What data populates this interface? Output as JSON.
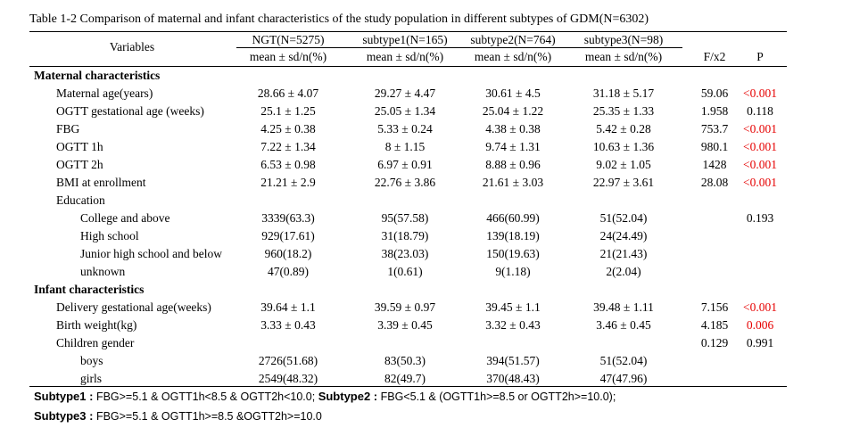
{
  "caption": "Table 1-2 Comparison of maternal and infant characteristics of the study population in different subtypes of GDM(N=6302)",
  "header": {
    "variables": "Variables",
    "groups": [
      "NGT(N=5275)",
      "subtype1(N=165)",
      "subtype2(N=764)",
      "subtype3(N=98)"
    ],
    "stat_label": "mean ± sd/n(%)",
    "f_label": "F/x2",
    "p_label": "P"
  },
  "rows": [
    {
      "type": "section",
      "label": "Maternal characteristics"
    },
    {
      "type": "data",
      "label": "Maternal age(years)",
      "indent": 1,
      "values": [
        "28.66 ± 4.07",
        "29.27 ± 4.47",
        "30.61 ± 4.5",
        "31.18 ± 5.17"
      ],
      "f": "59.06",
      "p": "<0.001",
      "p_red": true
    },
    {
      "type": "data",
      "label": "OGTT gestational age (weeks)",
      "indent": 1,
      "values": [
        "25.1 ± 1.25",
        "25.05 ± 1.34",
        "25.04 ± 1.22",
        "25.35 ± 1.33"
      ],
      "f": "1.958",
      "p": "0.118",
      "p_red": false
    },
    {
      "type": "data",
      "label": "FBG",
      "indent": 1,
      "values": [
        "4.25 ± 0.38",
        "5.33 ± 0.24",
        "4.38 ± 0.38",
        "5.42 ± 0.28"
      ],
      "f": "753.7",
      "p": "<0.001",
      "p_red": true
    },
    {
      "type": "data",
      "label": "OGTT 1h",
      "indent": 1,
      "values": [
        "7.22 ± 1.34",
        "8 ± 1.15",
        "9.74 ± 1.31",
        "10.63 ± 1.36"
      ],
      "f": "980.1",
      "p": "<0.001",
      "p_red": true
    },
    {
      "type": "data",
      "label": "OGTT 2h",
      "indent": 1,
      "values": [
        "6.53 ± 0.98",
        "6.97 ± 0.91",
        "8.88 ± 0.96",
        "9.02 ± 1.05"
      ],
      "f": "1428",
      "p": "<0.001",
      "p_red": true
    },
    {
      "type": "data",
      "label": "BMI at enrollment",
      "indent": 1,
      "values": [
        "21.21 ± 2.9",
        "22.76 ± 3.86",
        "21.61 ± 3.03",
        "22.97 ± 3.61"
      ],
      "f": "28.08",
      "p": "<0.001",
      "p_red": true
    },
    {
      "type": "data",
      "label": "Education",
      "indent": 1,
      "values": [
        "",
        "",
        "",
        ""
      ],
      "f": "",
      "p": "",
      "p_red": false
    },
    {
      "type": "data",
      "label": "College and above",
      "indent": 2,
      "values": [
        "3339(63.3)",
        "95(57.58)",
        "466(60.99)",
        "51(52.04)"
      ],
      "f": "",
      "p": "0.193",
      "p_red": false
    },
    {
      "type": "data",
      "label": "High school",
      "indent": 2,
      "values": [
        "929(17.61)",
        "31(18.79)",
        "139(18.19)",
        "24(24.49)"
      ],
      "f": "",
      "p": "",
      "p_red": false
    },
    {
      "type": "data",
      "label": "Junior high school and below",
      "indent": 2,
      "values": [
        "960(18.2)",
        "38(23.03)",
        "150(19.63)",
        "21(21.43)"
      ],
      "f": "",
      "p": "",
      "p_red": false
    },
    {
      "type": "data",
      "label": "unknown",
      "indent": 2,
      "values": [
        "47(0.89)",
        "1(0.61)",
        "9(1.18)",
        "2(2.04)"
      ],
      "f": "",
      "p": "",
      "p_red": false
    },
    {
      "type": "section",
      "label": "Infant characteristics"
    },
    {
      "type": "data",
      "label": "Delivery gestational age(weeks)",
      "indent": 1,
      "values": [
        "39.64 ± 1.1",
        "39.59 ± 0.97",
        "39.45 ± 1.1",
        "39.48 ± 1.11"
      ],
      "f": "7.156",
      "p": "<0.001",
      "p_red": true
    },
    {
      "type": "data",
      "label": "Birth weight(kg)",
      "indent": 1,
      "values": [
        "3.33 ± 0.43",
        "3.39 ± 0.45",
        "3.32 ± 0.43",
        "3.46 ± 0.45"
      ],
      "f": "4.185",
      "p": "0.006",
      "p_red": true
    },
    {
      "type": "data",
      "label": "Children gender",
      "indent": 1,
      "values": [
        "",
        "",
        "",
        ""
      ],
      "f": "0.129",
      "p": "0.991",
      "p_red": false
    },
    {
      "type": "data",
      "label": "boys",
      "indent": 2,
      "values": [
        "2726(51.68)",
        "83(50.3)",
        "394(51.57)",
        "51(52.04)"
      ],
      "f": "",
      "p": "",
      "p_red": false
    },
    {
      "type": "data",
      "label": "girls",
      "indent": 2,
      "values": [
        "2549(48.32)",
        "82(49.7)",
        "370(48.43)",
        "47(47.96)"
      ],
      "f": "",
      "p": "",
      "p_red": false
    }
  ],
  "notes": {
    "s1_label": "Subtype1 :",
    "s1_text": " FBG>=5.1 & OGTT1h<8.5 & OGTT2h<10.0; ",
    "s2_label": "Subtype2 :",
    "s2_text": " FBG<5.1 & (OGTT1h>=8.5 or OGTT2h>=10.0);",
    "s3_label": "Subtype3 :",
    "s3_text": " FBG>=5.1 & OGTT1h>=8.5 &OGTT2h>=10.0"
  },
  "colors": {
    "significant": "#e60000"
  }
}
